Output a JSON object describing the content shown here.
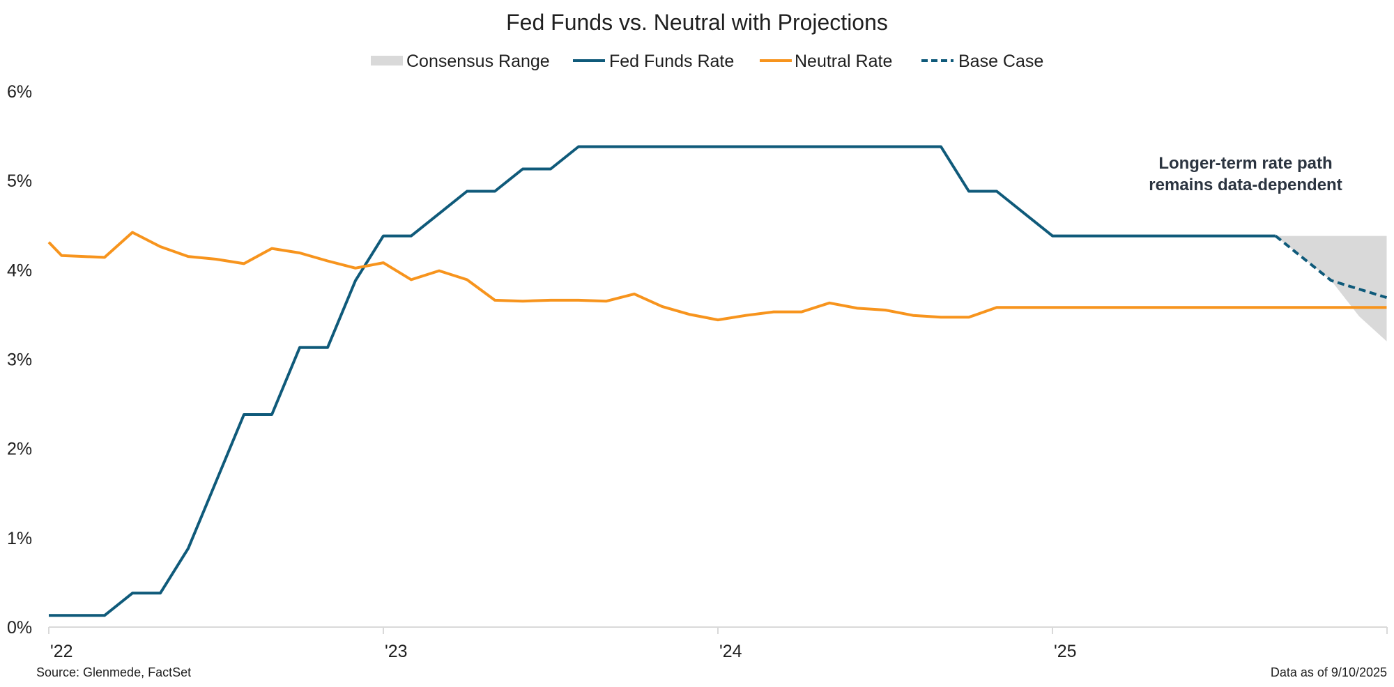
{
  "chart_data": {
    "type": "line",
    "title": "Fed Funds vs. Neutral with Projections",
    "legend": {
      "placement": "top-center",
      "entries": [
        "Consensus Range",
        "Fed Funds Rate",
        "Neutral Rate",
        "Base Case"
      ]
    },
    "y_axis": {
      "ylim": [
        0,
        6
      ],
      "ticks": [
        0,
        1,
        2,
        3,
        4,
        5,
        6
      ],
      "tick_labels": [
        "0%",
        "1%",
        "2%",
        "3%",
        "4%",
        "5%",
        "6%"
      ]
    },
    "x_axis": {
      "tick_labels": [
        "'22",
        "'23",
        "'24",
        "'25"
      ],
      "tick_positions": [
        "2022-01",
        "2023-01",
        "2024-01",
        "2025-01"
      ],
      "range": [
        "2022-01",
        "2026-01"
      ]
    },
    "grid": false,
    "colors": {
      "fed_funds": "#0f5a7a",
      "neutral": "#f7941d",
      "consensus": "#d9d9d9",
      "base_case": "#0f5a7a"
    },
    "series": [
      {
        "name": "Fed Funds Rate",
        "style": "solid",
        "points": [
          [
            "2022-01",
            0.13
          ],
          [
            "2022-02",
            0.13
          ],
          [
            "2022-03",
            0.13
          ],
          [
            "2022-04",
            0.38
          ],
          [
            "2022-05",
            0.38
          ],
          [
            "2022-06",
            0.88
          ],
          [
            "2022-07",
            1.63
          ],
          [
            "2022-08",
            2.38
          ],
          [
            "2022-09",
            2.38
          ],
          [
            "2022-10",
            3.13
          ],
          [
            "2022-11",
            3.13
          ],
          [
            "2022-12",
            3.88
          ],
          [
            "2023-01",
            4.38
          ],
          [
            "2023-02",
            4.38
          ],
          [
            "2023-03",
            4.63
          ],
          [
            "2023-04",
            4.88
          ],
          [
            "2023-05",
            4.88
          ],
          [
            "2023-06",
            5.13
          ],
          [
            "2023-07",
            5.13
          ],
          [
            "2023-08",
            5.38
          ],
          [
            "2023-09",
            5.38
          ],
          [
            "2023-10",
            5.38
          ],
          [
            "2023-11",
            5.38
          ],
          [
            "2023-12",
            5.38
          ],
          [
            "2024-01",
            5.38
          ],
          [
            "2024-02",
            5.38
          ],
          [
            "2024-03",
            5.38
          ],
          [
            "2024-04",
            5.38
          ],
          [
            "2024-05",
            5.38
          ],
          [
            "2024-06",
            5.38
          ],
          [
            "2024-07",
            5.38
          ],
          [
            "2024-08",
            5.38
          ],
          [
            "2024-09",
            5.38
          ],
          [
            "2024-10",
            4.88
          ],
          [
            "2024-11",
            4.88
          ],
          [
            "2024-12",
            4.63
          ],
          [
            "2025-01",
            4.38
          ],
          [
            "2025-02",
            4.38
          ],
          [
            "2025-03",
            4.38
          ],
          [
            "2025-04",
            4.38
          ],
          [
            "2025-05",
            4.38
          ],
          [
            "2025-06",
            4.38
          ],
          [
            "2025-07",
            4.38
          ],
          [
            "2025-08",
            4.38
          ],
          [
            "2025-09",
            4.38
          ]
        ]
      },
      {
        "name": "Neutral Rate",
        "style": "solid",
        "points": [
          [
            "2022-01",
            4.31
          ],
          [
            "2022-01-15",
            4.16
          ],
          [
            "2022-03",
            4.14
          ],
          [
            "2022-04",
            4.42
          ],
          [
            "2022-05",
            4.26
          ],
          [
            "2022-06",
            4.15
          ],
          [
            "2022-07",
            4.12
          ],
          [
            "2022-08",
            4.07
          ],
          [
            "2022-09",
            4.24
          ],
          [
            "2022-10",
            4.19
          ],
          [
            "2022-11",
            4.1
          ],
          [
            "2022-12",
            4.02
          ],
          [
            "2023-01",
            4.08
          ],
          [
            "2023-02",
            3.89
          ],
          [
            "2023-03",
            3.99
          ],
          [
            "2023-04",
            3.89
          ],
          [
            "2023-05",
            3.66
          ],
          [
            "2023-06",
            3.65
          ],
          [
            "2023-07",
            3.66
          ],
          [
            "2023-08",
            3.66
          ],
          [
            "2023-09",
            3.65
          ],
          [
            "2023-10",
            3.73
          ],
          [
            "2023-11",
            3.59
          ],
          [
            "2023-12",
            3.5
          ],
          [
            "2024-01",
            3.44
          ],
          [
            "2024-02",
            3.49
          ],
          [
            "2024-03",
            3.53
          ],
          [
            "2024-04",
            3.53
          ],
          [
            "2024-05",
            3.63
          ],
          [
            "2024-06",
            3.57
          ],
          [
            "2024-07",
            3.55
          ],
          [
            "2024-08",
            3.49
          ],
          [
            "2024-09",
            3.47
          ],
          [
            "2024-10",
            3.47
          ],
          [
            "2024-11",
            3.58
          ],
          [
            "2024-12",
            3.58
          ],
          [
            "2025-01",
            3.58
          ],
          [
            "2025-02",
            3.58
          ],
          [
            "2025-03",
            3.58
          ],
          [
            "2025-04",
            3.58
          ],
          [
            "2025-05",
            3.58
          ],
          [
            "2025-06",
            3.58
          ],
          [
            "2025-07",
            3.58
          ],
          [
            "2025-08",
            3.58
          ],
          [
            "2025-09",
            3.58
          ],
          [
            "2025-10",
            3.58
          ],
          [
            "2025-11",
            3.58
          ],
          [
            "2025-12",
            3.58
          ],
          [
            "2025-12-31",
            3.58
          ]
        ]
      },
      {
        "name": "Base Case",
        "style": "dashed",
        "points": [
          [
            "2025-09",
            4.38
          ],
          [
            "2025-10",
            4.13
          ],
          [
            "2025-11",
            3.88
          ],
          [
            "2025-12-31",
            3.69
          ]
        ]
      }
    ],
    "bands": [
      {
        "name": "Consensus Range",
        "points": [
          [
            "2025-09",
            4.38,
            4.38
          ],
          [
            "2025-10",
            4.38,
            4.13
          ],
          [
            "2025-11",
            4.38,
            3.88
          ],
          [
            "2025-12",
            4.38,
            3.48
          ],
          [
            "2025-12-31",
            4.38,
            3.2
          ]
        ]
      }
    ],
    "annotations": [
      {
        "lines": [
          "Longer-term rate path",
          "remains data-dependent"
        ]
      }
    ]
  },
  "footer": {
    "source": "Source: Glenmede, FactSet",
    "date_note": "Data as of 9/10/2025"
  }
}
